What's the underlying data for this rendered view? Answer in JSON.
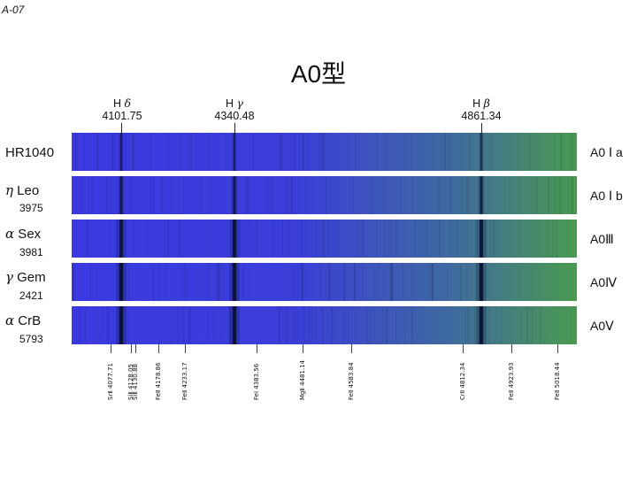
{
  "slide_id": "A-07",
  "title": "A0型",
  "hydrogen_lines": [
    {
      "name": "H",
      "greek": "δ",
      "wavelength": "4101.75"
    },
    {
      "name": "H",
      "greek": "γ",
      "wavelength": "4340.48"
    },
    {
      "name": "H",
      "greek": "β",
      "wavelength": "4861.34"
    }
  ],
  "stars": [
    {
      "greek": "",
      "name": "HR1040",
      "number": "",
      "type": "A0 Ⅰ a"
    },
    {
      "greek": "η",
      "name": " Leo",
      "number": "3975",
      "type": "A0 Ⅰ b"
    },
    {
      "greek": "α",
      "name": " Sex",
      "number": "3981",
      "type": "A0Ⅲ"
    },
    {
      "greek": "γ",
      "name": " Gem",
      "number": "2421",
      "type": "A0Ⅳ"
    },
    {
      "greek": "α",
      "name": " CrB",
      "number": "5793",
      "type": "A0Ⅴ"
    }
  ],
  "metal_lines": [
    {
      "label": "SrⅡ 4077.71"
    },
    {
      "label": "SiⅡ 4128.05"
    },
    {
      "label": "SiⅡ 4130.88"
    },
    {
      "label": "FeⅡ 4178.86"
    },
    {
      "label": "FeⅡ 4233.17"
    },
    {
      "label": "FeⅠ 4383.56"
    },
    {
      "label": "MgⅡ 4481.14"
    },
    {
      "label": "FeⅡ 4583.84"
    },
    {
      "label": "CrⅡ 4812.34"
    },
    {
      "label": "FeⅡ 4923.93"
    },
    {
      "label": "FeⅡ 5018.44"
    }
  ],
  "colors": {
    "spectrum_blue": "#3a3ae0",
    "spectrum_green": "#4a9a50",
    "absorption": "#0a1030"
  }
}
